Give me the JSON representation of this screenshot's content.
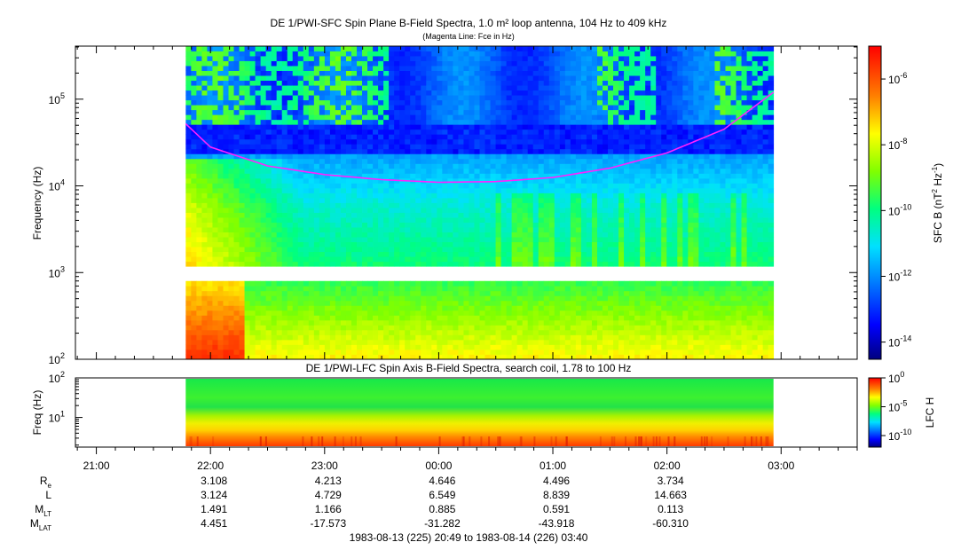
{
  "title": "DE 1/PWI-SFC  Spin Plane B-Field Spectra, 1.0 m² loop antenna, 104 Hz to 409 kHz",
  "subtitle": "(Magenta Line: Fce in Hz)",
  "panel2_title": "DE 1/PWI-LFC  Spin Axis B-Field Spectra, search coil, 1.78 to 100 Hz",
  "footer": "1983-08-13 (225) 20:49 to 1983-08-14 (226) 03:40",
  "colors": {
    "fce_line": "#ff22ff",
    "frame": "#000000",
    "background": "#ffffff"
  },
  "chart_data": [
    {
      "type": "heatmap",
      "title": "DE 1/PWI-SFC  Spin Plane B-Field Spectra, 1.0 m² loop antenna, 104 Hz to 409 kHz",
      "ylabel": "Frequency (Hz)",
      "yscale": "log",
      "ylim": [
        100,
        409000
      ],
      "y_ticks": [
        {
          "label": "10",
          "sup": "2"
        },
        {
          "label": "10",
          "sup": "3"
        },
        {
          "label": "10",
          "sup": "4"
        },
        {
          "label": "10",
          "sup": "5"
        }
      ],
      "x_range": [
        "20:49",
        "03:40"
      ],
      "x_ticks": [
        "21:00",
        "22:00",
        "23:00",
        "00:00",
        "01:00",
        "02:00",
        "03:00"
      ],
      "data_interval": [
        "21:47",
        "02:56"
      ],
      "data_gap_hz": [
        900,
        1050
      ],
      "colorbar": {
        "label": "SFC B (nT",
        "label_sup1": "2",
        "label_mid": " Hz",
        "label_sup2": "-1",
        "label_end": ")",
        "scale": "log",
        "range": [
          3e-15,
          1e-05
        ],
        "ticks": [
          {
            "label": "10",
            "sup": "-6"
          },
          {
            "label": "10",
            "sup": "-8"
          },
          {
            "label": "10",
            "sup": "-10"
          },
          {
            "label": "10",
            "sup": "-12"
          },
          {
            "label": "10",
            "sup": "-14"
          }
        ]
      },
      "fce_series": {
        "name": "Fce",
        "x": [
          "21:47",
          "22:00",
          "22:30",
          "23:00",
          "23:30",
          "00:00",
          "00:30",
          "01:00",
          "01:30",
          "02:00",
          "02:30",
          "02:56"
        ],
        "y": [
          52000,
          28000,
          17000,
          13500,
          11800,
          11000,
          11200,
          12500,
          16000,
          24000,
          45000,
          120000
        ]
      }
    },
    {
      "type": "heatmap",
      "title": "DE 1/PWI-LFC  Spin Axis B-Field Spectra, search coil, 1.78 to 100 Hz",
      "ylabel": "Freq (Hz)",
      "yscale": "log",
      "ylim": [
        1.78,
        100
      ],
      "y_ticks": [
        {
          "label": "10",
          "sup": "2"
        },
        {
          "label": "10",
          "sup": "1"
        }
      ],
      "colorbar": {
        "label": "LFC H",
        "scale": "log",
        "range": [
          1e-12,
          1
        ],
        "ticks": [
          {
            "label": "10",
            "sup": "0"
          },
          {
            "label": "10",
            "sup": "-5"
          },
          {
            "label": "10",
            "sup": "-10"
          }
        ]
      }
    }
  ],
  "ephemeris": {
    "times": [
      "22:00",
      "23:00",
      "00:00",
      "01:00",
      "02:00"
    ],
    "rows": [
      {
        "label": "R",
        "sub": "e",
        "values": [
          "3.108",
          "4.213",
          "4.646",
          "4.496",
          "3.734"
        ]
      },
      {
        "label": "L",
        "sub": "",
        "values": [
          "3.124",
          "4.729",
          "6.549",
          "8.839",
          "14.663"
        ]
      },
      {
        "label": "M",
        "sub": "LT",
        "values": [
          "1.491",
          "1.166",
          "0.885",
          "0.591",
          "0.113"
        ]
      },
      {
        "label": "M",
        "sub": "LAT",
        "values": [
          "4.451",
          "-17.573",
          "-31.282",
          "-43.918",
          "-60.310"
        ]
      }
    ]
  }
}
